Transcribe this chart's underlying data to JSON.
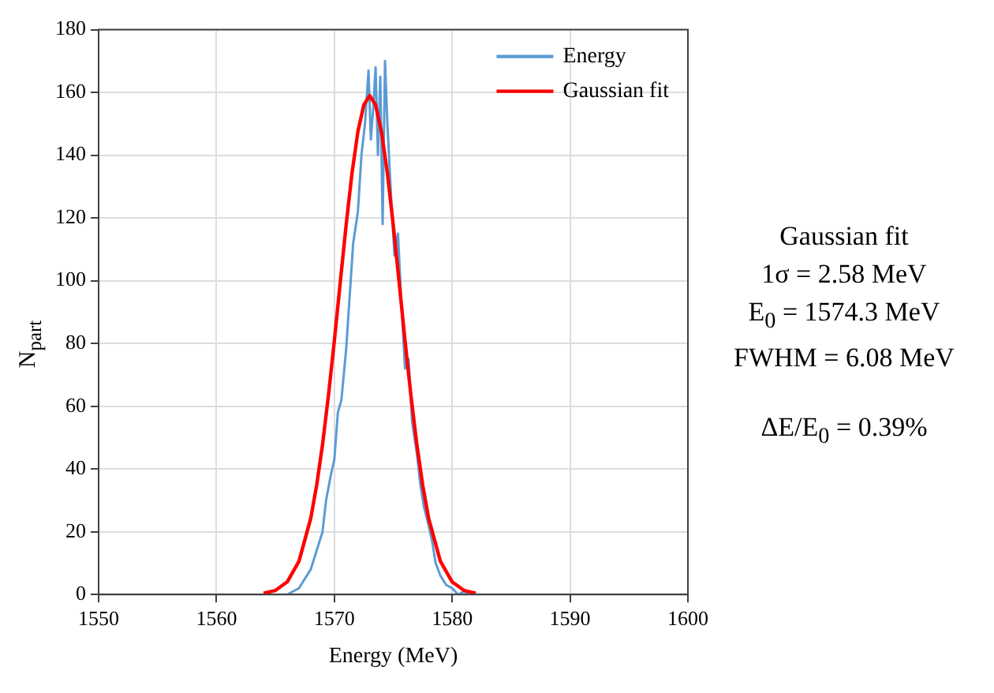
{
  "chart_data": {
    "type": "line",
    "xlabel": "Energy (MeV)",
    "ylabel": "N$_{part}$",
    "series": [
      {
        "name": "Energy",
        "color": "#5b9bd5",
        "x": [
          1566,
          1567,
          1567.5,
          1568,
          1568.5,
          1569,
          1569.3,
          1569.7,
          1570,
          1570.3,
          1570.6,
          1571,
          1571.3,
          1571.6,
          1572,
          1572.3,
          1572.6,
          1572.9,
          1573.1,
          1573.3,
          1573.5,
          1573.7,
          1573.9,
          1574.1,
          1574.3,
          1574.5,
          1574.8,
          1575.1,
          1575.4,
          1575.7,
          1576,
          1576.3,
          1576.6,
          1577,
          1577.3,
          1577.6,
          1578,
          1578.3,
          1578.6,
          1579,
          1579.5,
          1580,
          1580.5,
          1581,
          1581.5,
          1582
        ],
        "values": [
          0,
          2,
          5,
          8,
          14,
          20,
          30,
          38,
          43,
          58,
          62,
          78,
          95,
          112,
          122,
          140,
          150,
          167,
          145,
          155,
          168,
          140,
          165,
          118,
          170,
          150,
          128,
          108,
          115,
          92,
          72,
          75,
          55,
          45,
          35,
          28,
          22,
          17,
          10,
          6,
          3,
          2,
          0,
          1,
          0,
          0
        ]
      },
      {
        "name": "Gaussian fit",
        "color": "#ff0000",
        "x": [
          1564,
          1565,
          1566,
          1567,
          1568,
          1568.5,
          1569,
          1569.5,
          1570,
          1570.5,
          1571,
          1571.5,
          1572,
          1572.5,
          1573,
          1573.5,
          1574,
          1574.5,
          1575,
          1575.5,
          1576,
          1576.5,
          1577,
          1577.5,
          1578,
          1579,
          1580,
          1581,
          1582
        ],
        "values": [
          0.4,
          1.3,
          4.0,
          10.6,
          24.3,
          34.8,
          47.8,
          63.4,
          80.8,
          99.4,
          117.7,
          134.3,
          147.5,
          156,
          159,
          156,
          147.5,
          134.3,
          117.7,
          99.4,
          80.8,
          63.4,
          47.8,
          34.8,
          24.3,
          10.6,
          4.0,
          1.3,
          0.4
        ]
      }
    ],
    "xlim": [
      1550,
      1600
    ],
    "xticks": [
      1550,
      1560,
      1570,
      1580,
      1590,
      1600
    ],
    "ylim": [
      0,
      180
    ],
    "yticks": [
      0,
      20,
      40,
      60,
      80,
      100,
      120,
      140,
      160,
      180
    ],
    "grid": true,
    "legend": "top right",
    "marker": "none",
    "line_style": "solid",
    "annotations": [
      "Gaussian fit",
      "1σ = 2.58 MeV",
      "E$_{0}$ = 1574.3 MeV",
      "FWHM = 6.08 MeV",
      "ΔE/E$_{0}$ = 0.39%"
    ]
  }
}
